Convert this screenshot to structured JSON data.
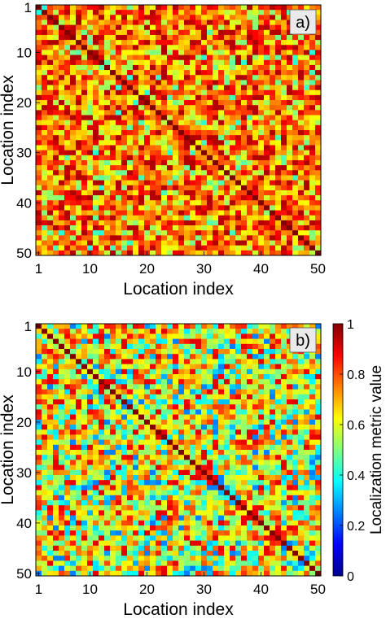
{
  "chart_data": [
    {
      "type": "heatmap",
      "panel_label": "a)",
      "xlabel": "Location index",
      "ylabel": "Location index",
      "x_ticks": [
        "1",
        "10",
        "20",
        "30",
        "40",
        "50"
      ],
      "y_ticks": [
        "1",
        "10",
        "20",
        "30",
        "40",
        "50"
      ],
      "size": 50,
      "diagonal_value": 1.0,
      "value_range": [
        0.45,
        0.95
      ],
      "typical_value": 0.75,
      "colormap": "jet",
      "y_axis_reversed": true,
      "colorbar": false
    },
    {
      "type": "heatmap",
      "panel_label": "b)",
      "xlabel": "Location index",
      "ylabel": "Location index",
      "x_ticks": [
        "1",
        "10",
        "20",
        "30",
        "40",
        "50"
      ],
      "y_ticks": [
        "1",
        "10",
        "20",
        "30",
        "40",
        "50"
      ],
      "size": 50,
      "diagonal_value": 1.0,
      "value_range": [
        0.3,
        0.9
      ],
      "typical_value": 0.6,
      "colormap": "jet",
      "y_axis_reversed": true,
      "colorbar": true,
      "colorbar_label": "Localization metric value",
      "colorbar_ticks": [
        "0",
        "0.2",
        "0.4",
        "0.6",
        "0.8",
        "1"
      ],
      "colorbar_range": [
        0,
        1
      ]
    }
  ]
}
